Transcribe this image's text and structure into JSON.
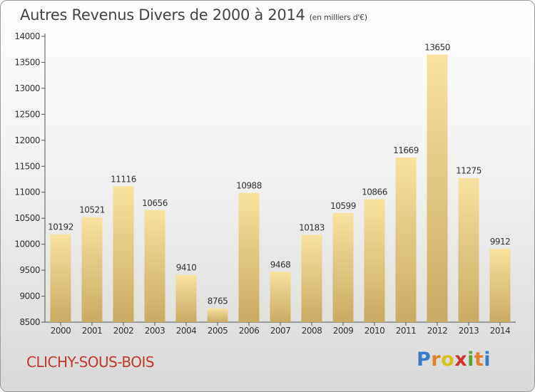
{
  "header": {
    "title": "Autres Revenus Divers de 2000 à 2014",
    "unit": "(en milliers d'€)"
  },
  "footer": {
    "city": "CLICHY-SOUS-BOIS",
    "logo": [
      "P",
      "r",
      "o",
      "x",
      "i",
      "t",
      "i"
    ]
  },
  "chart_data": {
    "type": "bar",
    "title": "Autres Revenus Divers de 2000 à 2014",
    "subtitle": "(en milliers d'€)",
    "categories": [
      "2000",
      "2001",
      "2002",
      "2003",
      "2004",
      "2005",
      "2006",
      "2007",
      "2008",
      "2009",
      "2010",
      "2011",
      "2012",
      "2013",
      "2014"
    ],
    "values": [
      10192,
      10521,
      11116,
      10656,
      9410,
      8765,
      10988,
      9468,
      10183,
      10599,
      10866,
      11669,
      13650,
      11275,
      9912
    ],
    "ylim": [
      8500,
      14000
    ],
    "yticks": [
      8500,
      9000,
      9500,
      10000,
      10500,
      11000,
      11500,
      12000,
      12500,
      13000,
      13500,
      14000
    ],
    "grid": false,
    "colors": {
      "bar_top": "#f7e3a0",
      "bar_bottom": "#c8ab62",
      "axis": "#555555",
      "label": "#333333"
    }
  }
}
